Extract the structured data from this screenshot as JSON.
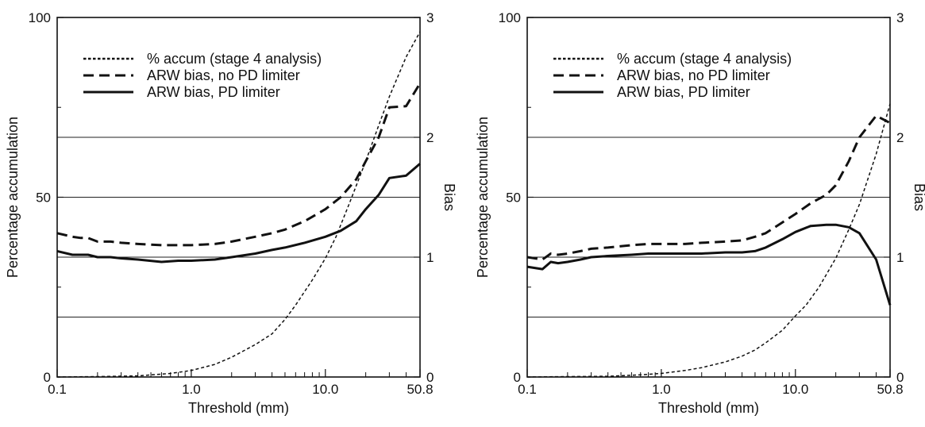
{
  "chart_data": [
    {
      "type": "line",
      "xlabel": "Threshold (mm)",
      "ylabel": "Percentage accumulation",
      "y2label": "Bias",
      "xscale": "log",
      "xlim": [
        0.1,
        50.8
      ],
      "ylim": [
        0,
        100
      ],
      "y2lim": [
        0,
        3
      ],
      "xticks": [
        "0.1",
        "1.0",
        "10.0",
        "50.8"
      ],
      "yticks": [
        "0",
        "50",
        "100"
      ],
      "y2ticks": [
        "0",
        "1",
        "2",
        "3"
      ],
      "grid": "horizontal lines at bias 0.5, 1, 1.5, 2",
      "legend_position": "top-left",
      "series": [
        {
          "name": "% accum (stage 4 analysis)",
          "axis": "left",
          "style": "dotted",
          "x": [
            0.1,
            0.2,
            0.4,
            0.7,
            1.0,
            1.5,
            2.0,
            3.0,
            4.0,
            5.0,
            6.0,
            8.0,
            10.0,
            12.0,
            15.0,
            20.0,
            25.0,
            30.0,
            40.0,
            50.8
          ],
          "y": [
            0,
            0.1,
            0.3,
            1.0,
            1.8,
            3.5,
            5.5,
            9.0,
            12.0,
            16.0,
            20.0,
            27.0,
            33.0,
            39.0,
            48.0,
            60.0,
            70.0,
            78.0,
            89.0,
            96.0
          ]
        },
        {
          "name": "ARW bias, no PD limiter",
          "axis": "right",
          "style": "dashed",
          "x": [
            0.1,
            0.13,
            0.15,
            0.17,
            0.2,
            0.25,
            0.3,
            0.4,
            0.6,
            0.8,
            1.0,
            1.5,
            2.0,
            3.0,
            4.0,
            5.0,
            7.0,
            10.0,
            13.0,
            17.0,
            20.0,
            25.0,
            30.0,
            40.0,
            50.8
          ],
          "y": [
            1.2,
            1.17,
            1.16,
            1.16,
            1.13,
            1.13,
            1.12,
            1.11,
            1.1,
            1.1,
            1.1,
            1.11,
            1.13,
            1.17,
            1.2,
            1.23,
            1.3,
            1.4,
            1.5,
            1.65,
            1.8,
            2.0,
            2.25,
            2.26,
            2.45
          ]
        },
        {
          "name": "ARW bias, PD limiter",
          "axis": "right",
          "style": "solid",
          "x": [
            0.1,
            0.13,
            0.15,
            0.17,
            0.2,
            0.25,
            0.3,
            0.4,
            0.6,
            0.8,
            1.0,
            1.5,
            2.0,
            3.0,
            4.0,
            5.0,
            7.0,
            10.0,
            13.0,
            17.0,
            20.0,
            25.0,
            30.0,
            40.0,
            50.8
          ],
          "y": [
            1.05,
            1.02,
            1.02,
            1.02,
            1.0,
            1.0,
            0.99,
            0.98,
            0.96,
            0.97,
            0.97,
            0.98,
            1.0,
            1.03,
            1.06,
            1.08,
            1.12,
            1.17,
            1.22,
            1.3,
            1.4,
            1.52,
            1.66,
            1.68,
            1.78
          ]
        }
      ]
    },
    {
      "type": "line",
      "xlabel": "Threshold (mm)",
      "ylabel": "Percentage accumulation",
      "y2label": "Bias",
      "xscale": "log",
      "xlim": [
        0.1,
        50.8
      ],
      "ylim": [
        0,
        100
      ],
      "y2lim": [
        0,
        3
      ],
      "xticks": [
        "0.1",
        "1.0",
        "10.0",
        "50.8"
      ],
      "yticks": [
        "0",
        "50",
        "100"
      ],
      "y2ticks": [
        "0",
        "1",
        "2",
        "3"
      ],
      "grid": "horizontal lines at bias 0.5, 1, 1.5, 2",
      "legend_position": "top-left",
      "series": [
        {
          "name": "% accum (stage 4 analysis)",
          "axis": "left",
          "style": "dotted",
          "x": [
            0.1,
            0.2,
            0.4,
            0.7,
            1.0,
            1.5,
            2.0,
            3.0,
            4.0,
            5.0,
            6.0,
            8.0,
            10.0,
            12.0,
            15.0,
            20.0,
            25.0,
            30.0,
            40.0,
            50.8
          ],
          "y": [
            0,
            0.1,
            0.2,
            0.6,
            1.0,
            1.8,
            2.6,
            4.2,
            5.8,
            7.5,
            9.5,
            13.0,
            17.0,
            20.0,
            25.0,
            33.0,
            41.0,
            48.0,
            62.0,
            76.0
          ]
        },
        {
          "name": "ARW bias, no PD limiter",
          "axis": "right",
          "style": "dashed",
          "x": [
            0.1,
            0.13,
            0.15,
            0.17,
            0.2,
            0.25,
            0.3,
            0.4,
            0.6,
            0.8,
            1.0,
            1.5,
            2.0,
            3.0,
            4.0,
            5.0,
            6.0,
            8.0,
            10.0,
            13.0,
            17.0,
            20.0,
            25.0,
            30.0,
            40.0,
            50.8
          ],
          "y": [
            1.0,
            0.98,
            1.03,
            1.02,
            1.03,
            1.05,
            1.07,
            1.08,
            1.1,
            1.11,
            1.11,
            1.11,
            1.12,
            1.13,
            1.14,
            1.17,
            1.2,
            1.29,
            1.36,
            1.45,
            1.52,
            1.6,
            1.8,
            2.0,
            2.18,
            2.12
          ]
        },
        {
          "name": "ARW bias, PD limiter",
          "axis": "right",
          "style": "solid",
          "x": [
            0.1,
            0.13,
            0.15,
            0.17,
            0.2,
            0.25,
            0.3,
            0.4,
            0.6,
            0.8,
            1.0,
            1.5,
            2.0,
            3.0,
            4.0,
            5.0,
            6.0,
            8.0,
            10.0,
            13.0,
            17.0,
            20.0,
            25.0,
            30.0,
            40.0,
            50.8
          ],
          "y": [
            0.92,
            0.9,
            0.96,
            0.95,
            0.96,
            0.98,
            1.0,
            1.01,
            1.02,
            1.03,
            1.03,
            1.03,
            1.03,
            1.04,
            1.04,
            1.05,
            1.08,
            1.15,
            1.21,
            1.26,
            1.27,
            1.27,
            1.25,
            1.2,
            0.98,
            0.6
          ]
        }
      ]
    }
  ],
  "minor_xticks": [
    0.2,
    0.3,
    0.4,
    0.5,
    0.6,
    0.7,
    0.8,
    0.9,
    2,
    3,
    4,
    5,
    6,
    7,
    8,
    9,
    20,
    30,
    40
  ]
}
